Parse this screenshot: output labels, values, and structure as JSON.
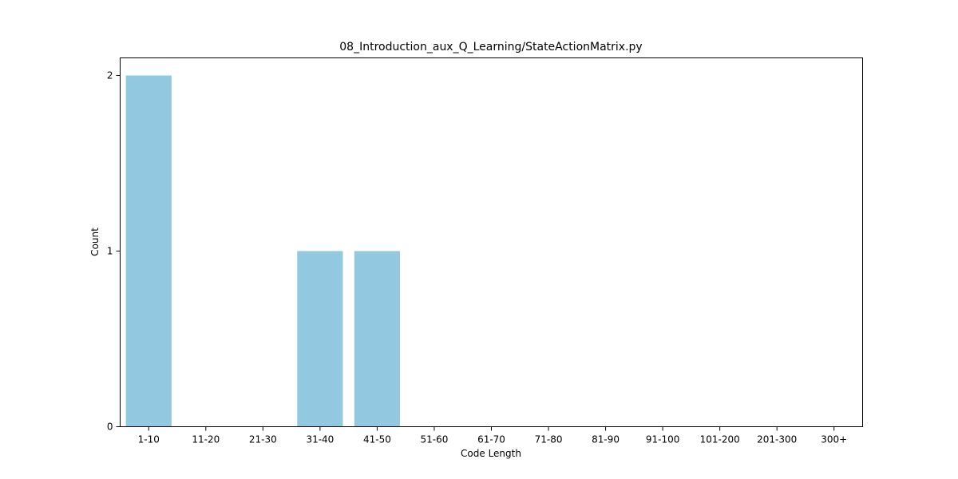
{
  "chart_data": {
    "type": "bar",
    "title": "08_Introduction_aux_Q_Learning/StateActionMatrix.py",
    "xlabel": "Code Length",
    "ylabel": "Count",
    "categories": [
      "1-10",
      "11-20",
      "21-30",
      "31-40",
      "41-50",
      "51-60",
      "61-70",
      "71-80",
      "81-90",
      "91-100",
      "101-200",
      "201-300",
      "300+"
    ],
    "values": [
      2,
      0,
      0,
      1,
      1,
      0,
      0,
      0,
      0,
      0,
      0,
      0,
      0
    ],
    "ylim": [
      0,
      2.1
    ],
    "yticks": [
      0,
      1,
      2
    ],
    "grid": false,
    "bar_color": "#92c9e0"
  }
}
